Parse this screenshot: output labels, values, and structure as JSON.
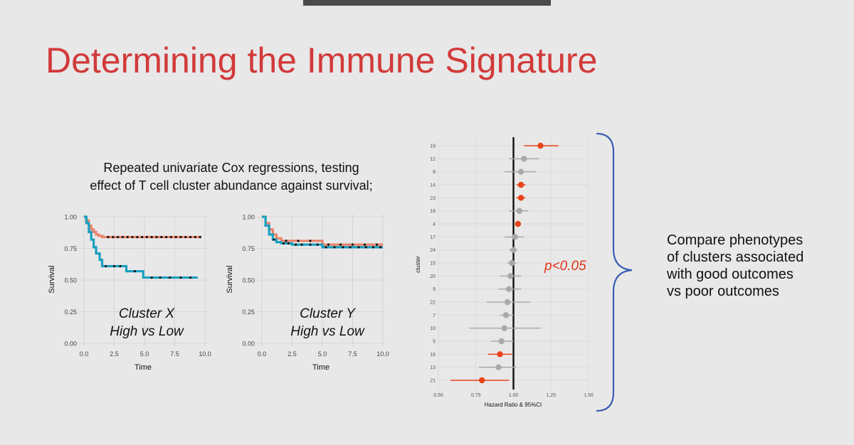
{
  "slide": {
    "title": "Determining the Immune Signature",
    "subtitle_lines": [
      "Repeated univariate Cox regressions, testing",
      "effect of T cell cluster abundance against survival;"
    ],
    "side_note_lines": [
      "Compare phenotypes",
      "of clusters associated",
      "with good outcomes",
      "vs poor outcomes"
    ]
  },
  "colors": {
    "title": "#d23a3a",
    "high": "#e8826a",
    "low": "#1a9fc0",
    "significant": "#e8431a",
    "nonsignificant": "#a9a9a9",
    "bracket": "#3a5fb0",
    "pvalue": "#e0361a"
  },
  "chart_data": [
    {
      "type": "line",
      "title": "",
      "xlabel": "Time",
      "ylabel": "Survival",
      "xlim": [
        0,
        10
      ],
      "ylim": [
        0,
        1
      ],
      "x_ticks": [
        "0.0",
        "2.5",
        "5.0",
        "7.5",
        "10.0"
      ],
      "y_ticks": [
        "0.00",
        "0.25",
        "0.50",
        "0.75",
        "1.00"
      ],
      "annotation": [
        "Cluster X",
        "High vs Low"
      ],
      "series": [
        {
          "x": [
            0,
            0.2,
            0.4,
            0.6,
            0.8,
            1.0,
            1.2,
            1.5,
            9.7
          ],
          "y": [
            1.0,
            0.97,
            0.93,
            0.9,
            0.88,
            0.86,
            0.85,
            0.84,
            0.84
          ],
          "censor": [
            2.0,
            2.4,
            2.8,
            3.2,
            3.6,
            4.0,
            4.4,
            4.8,
            5.2,
            5.6,
            6.0,
            6.4,
            6.8,
            7.2,
            7.6,
            8.0,
            8.4,
            8.8,
            9.2,
            9.6
          ]
        },
        {
          "x": [
            0,
            0.2,
            0.4,
            0.6,
            0.8,
            1.0,
            1.3,
            1.5,
            3.5,
            4.9,
            9.4
          ],
          "y": [
            1.0,
            0.95,
            0.88,
            0.82,
            0.76,
            0.71,
            0.66,
            0.61,
            0.57,
            0.52,
            0.52
          ],
          "censor": [
            1.8,
            2.5,
            3.0,
            4.2,
            5.6,
            6.3,
            7.1,
            8.0,
            8.8
          ]
        }
      ]
    },
    {
      "type": "line",
      "title": "",
      "xlabel": "Time",
      "ylabel": "Survival",
      "xlim": [
        0,
        10
      ],
      "ylim": [
        0,
        1
      ],
      "x_ticks": [
        "0.0",
        "2.5",
        "5.0",
        "7.5",
        "10.0"
      ],
      "y_ticks": [
        "0.00",
        "0.25",
        "0.50",
        "0.75",
        "1.00"
      ],
      "annotation": [
        "Cluster Y",
        "High vs Low"
      ],
      "series": [
        {
          "x": [
            0,
            0.3,
            0.6,
            0.9,
            1.2,
            1.6,
            5.0,
            10.0
          ],
          "y": [
            1.0,
            0.95,
            0.9,
            0.86,
            0.83,
            0.81,
            0.78,
            0.78
          ],
          "censor": [
            2.0,
            3.0,
            4.0,
            5.5,
            6.5,
            7.5,
            8.5,
            9.5
          ]
        },
        {
          "x": [
            0,
            0.3,
            0.6,
            0.9,
            1.2,
            1.6,
            2.5,
            5.0,
            10.0
          ],
          "y": [
            1.0,
            0.93,
            0.86,
            0.82,
            0.8,
            0.79,
            0.78,
            0.76,
            0.76
          ],
          "censor": [
            1.0,
            1.8,
            2.2,
            2.8,
            3.3,
            4.0,
            4.6,
            5.3,
            6.0,
            6.7,
            7.3,
            8.0,
            8.6,
            9.2,
            9.8
          ]
        }
      ]
    },
    {
      "type": "scatter",
      "title": "",
      "xlabel": "Hazard Ratio & 95%CI",
      "ylabel": "cluster",
      "xlim": [
        0.5,
        1.5
      ],
      "x_ticks": [
        "0.50",
        "0.75",
        "1.00",
        "1.25",
        "1.50"
      ],
      "reference_line": 1.0,
      "annotation": "p<0.05",
      "categories": [
        "19",
        "12",
        "8",
        "14",
        "23",
        "18",
        "4",
        "17",
        "24",
        "15",
        "20",
        "9",
        "22",
        "7",
        "10",
        "5",
        "16",
        "13",
        "21"
      ],
      "hr": [
        1.18,
        1.07,
        1.05,
        1.05,
        1.05,
        1.04,
        1.03,
        1.01,
        1.0,
        0.99,
        0.98,
        0.97,
        0.96,
        0.95,
        0.94,
        0.92,
        0.91,
        0.9,
        0.79
      ],
      "ci_low": [
        1.07,
        0.97,
        0.94,
        1.02,
        1.02,
        0.97,
        1.02,
        0.94,
        0.97,
        0.96,
        0.91,
        0.9,
        0.82,
        0.91,
        0.71,
        0.85,
        0.83,
        0.77,
        0.58
      ],
      "ci_high": [
        1.3,
        1.17,
        1.15,
        1.08,
        1.08,
        1.1,
        1.05,
        1.07,
        1.03,
        1.02,
        1.05,
        1.05,
        1.11,
        1.0,
        1.18,
        1.0,
        0.99,
        1.02,
        0.97
      ],
      "significant": [
        true,
        false,
        false,
        true,
        true,
        false,
        true,
        false,
        false,
        false,
        false,
        false,
        false,
        false,
        false,
        false,
        true,
        false,
        true
      ]
    }
  ]
}
